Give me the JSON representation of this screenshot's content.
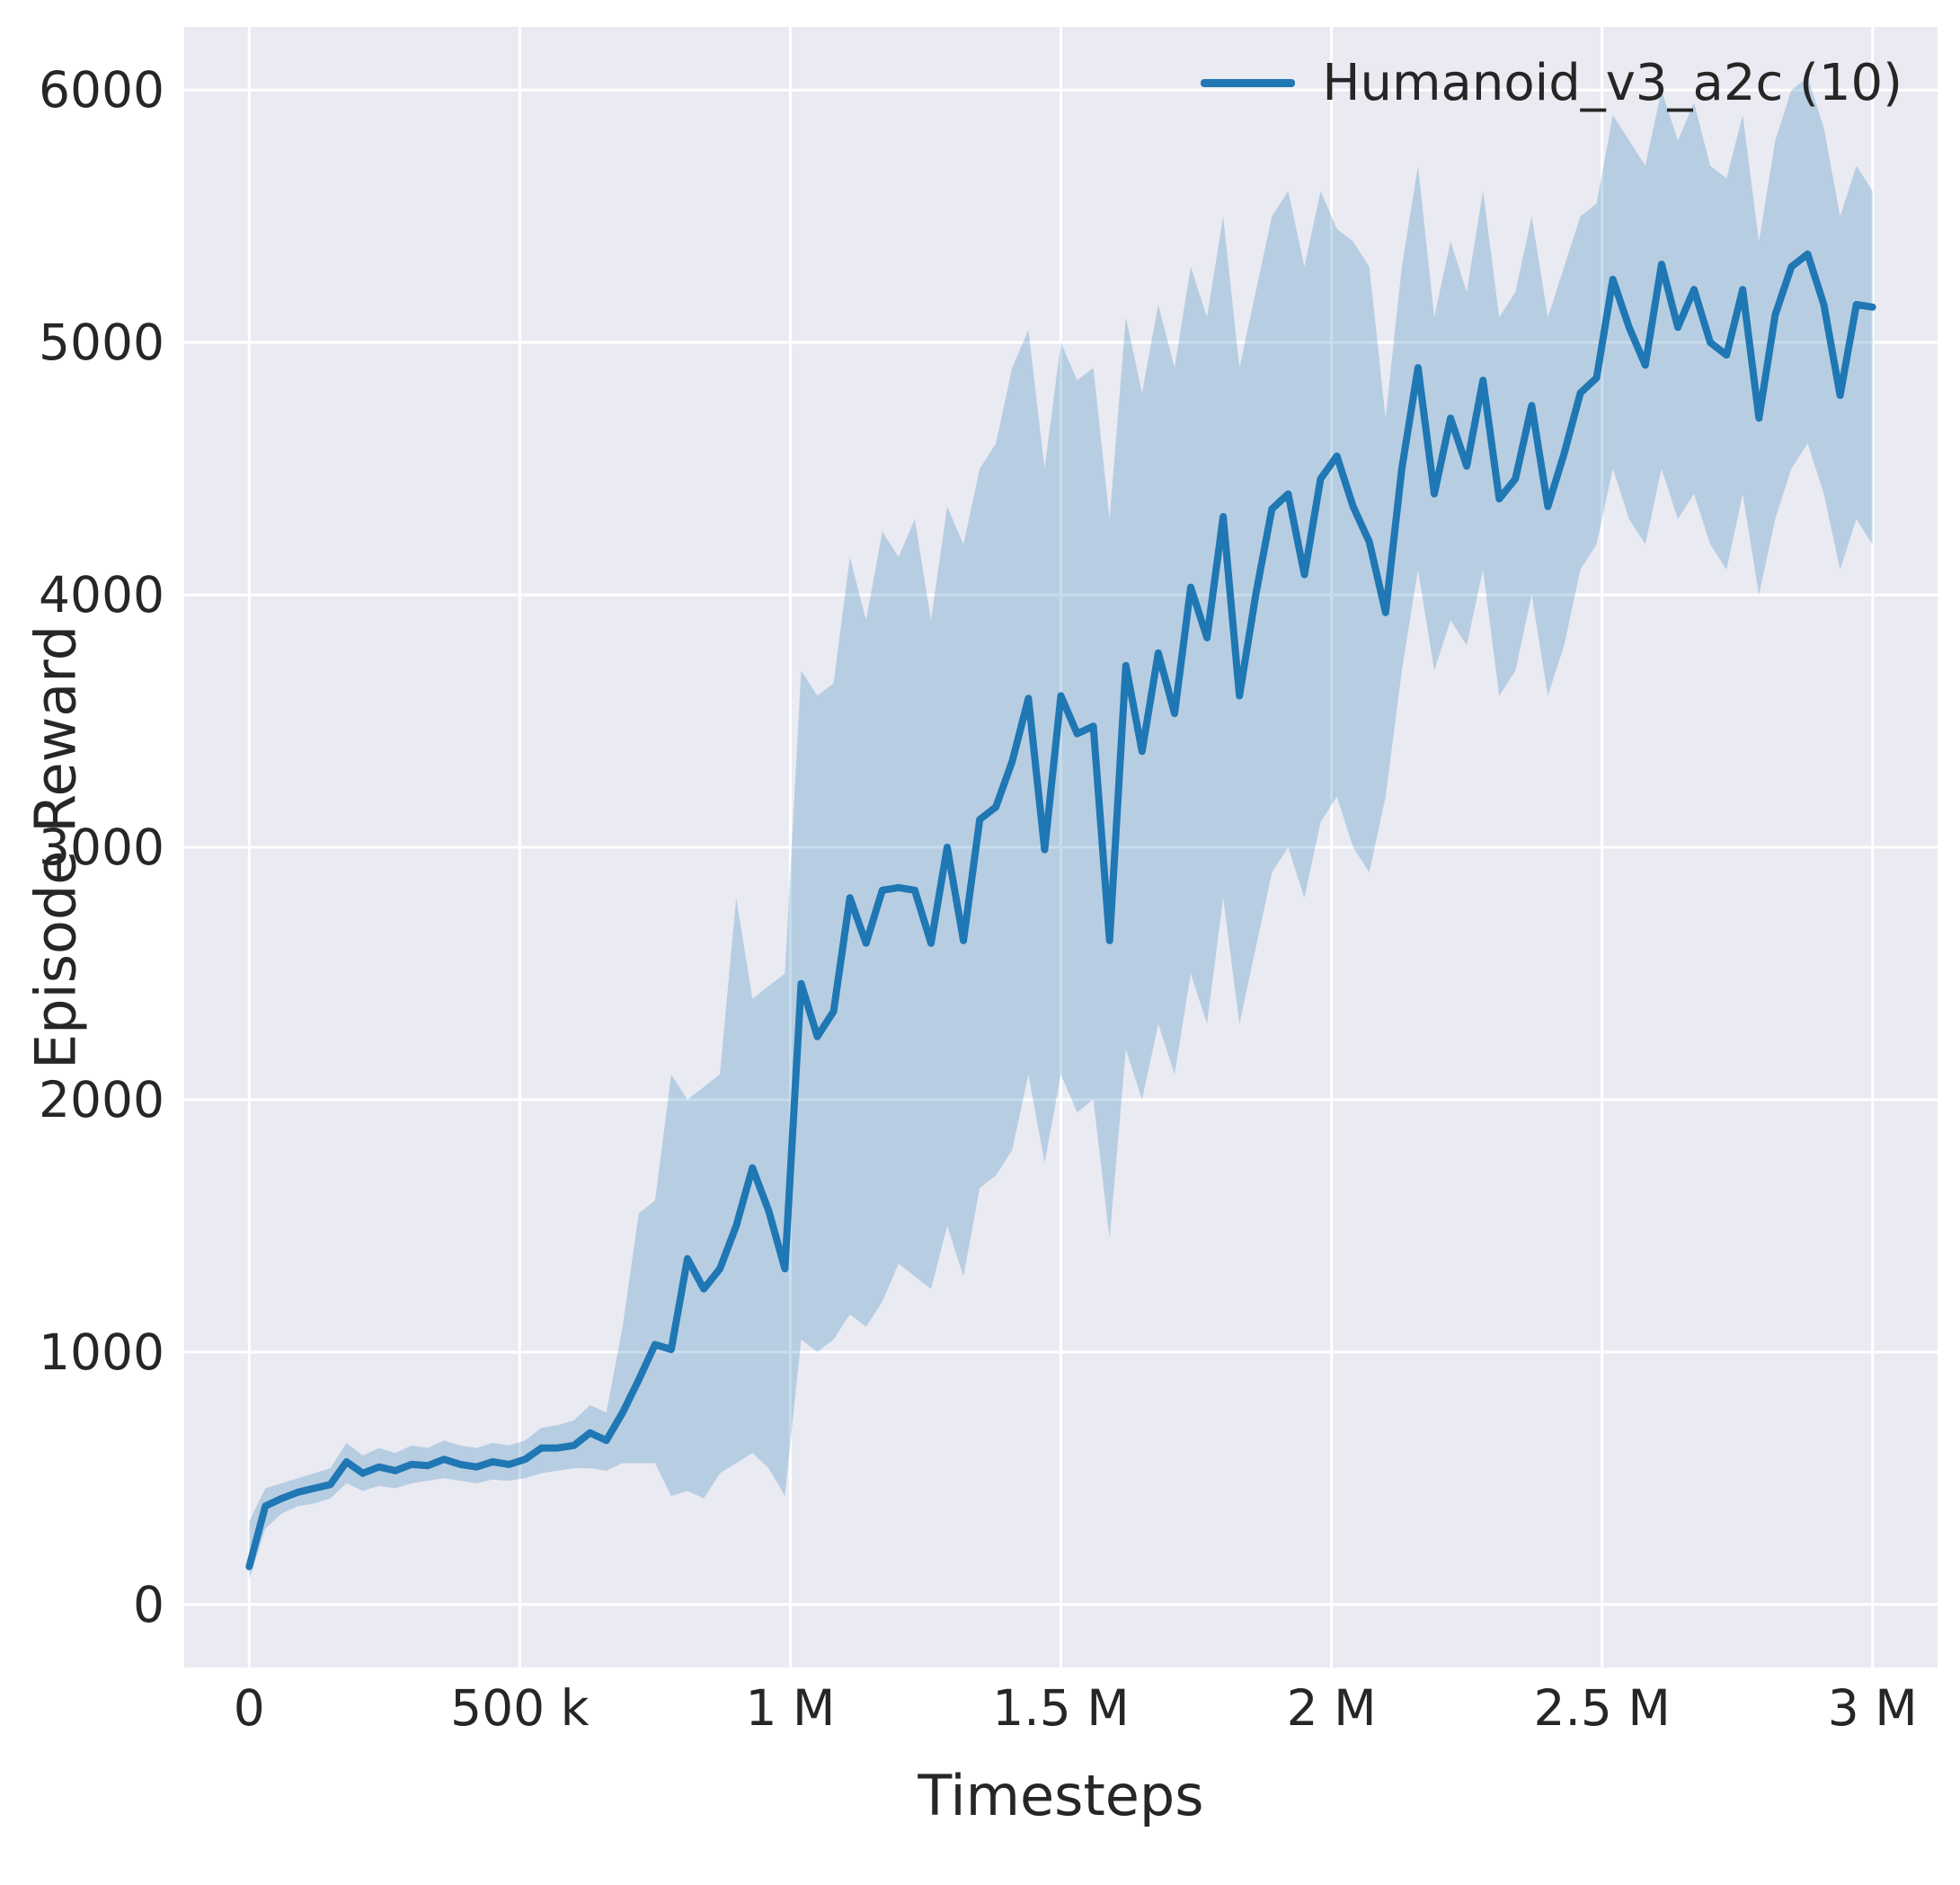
{
  "chart_data": {
    "type": "line",
    "title": "",
    "xlabel": "Timesteps",
    "ylabel": "Episode Reward",
    "legend_label": "Humanoid_v3_a2c (10)",
    "legend_position": "upper right",
    "grid": true,
    "xlim": [
      -120000,
      3120000
    ],
    "ylim": [
      -250,
      6250
    ],
    "xticks": [
      0,
      500000,
      1000000,
      1500000,
      2000000,
      2500000,
      3000000
    ],
    "xtick_labels": [
      "0",
      "500 k",
      "1 M",
      "1.5 M",
      "2 M",
      "2.5 M",
      "3 M"
    ],
    "yticks": [
      0,
      1000,
      2000,
      3000,
      4000,
      5000,
      6000
    ],
    "ytick_labels": [
      "0",
      "1000",
      "2000",
      "3000",
      "4000",
      "5000",
      "6000"
    ],
    "colors": {
      "line": "#1f77b4",
      "band": "rgba(31,119,180,0.25)",
      "panel": "#eaeaf2",
      "grid": "#ffffff",
      "text": "#262626"
    },
    "series": [
      {
        "name": "Humanoid_v3_a2c (10)",
        "x": [
          0,
          30000,
          60000,
          90000,
          120000,
          150000,
          180000,
          210000,
          240000,
          270000,
          300000,
          330000,
          360000,
          390000,
          420000,
          450000,
          480000,
          510000,
          540000,
          570000,
          600000,
          630000,
          660000,
          690000,
          720000,
          750000,
          780000,
          810000,
          840000,
          870000,
          900000,
          930000,
          960000,
          990000,
          1020000,
          1050000,
          1080000,
          1110000,
          1140000,
          1170000,
          1200000,
          1230000,
          1260000,
          1290000,
          1320000,
          1350000,
          1380000,
          1410000,
          1440000,
          1470000,
          1500000,
          1530000,
          1560000,
          1590000,
          1620000,
          1650000,
          1680000,
          1710000,
          1740000,
          1770000,
          1800000,
          1830000,
          1860000,
          1890000,
          1920000,
          1950000,
          1980000,
          2010000,
          2040000,
          2070000,
          2100000,
          2130000,
          2160000,
          2190000,
          2220000,
          2250000,
          2280000,
          2310000,
          2340000,
          2370000,
          2400000,
          2430000,
          2460000,
          2490000,
          2520000,
          2550000,
          2580000,
          2610000,
          2640000,
          2670000,
          2700000,
          2730000,
          2760000,
          2790000,
          2820000,
          2850000,
          2880000,
          2910000,
          2940000,
          2970000,
          3000000
        ],
        "mean": [
          150,
          390,
          420,
          445,
          460,
          475,
          565,
          520,
          545,
          530,
          555,
          550,
          575,
          555,
          545,
          565,
          555,
          575,
          620,
          620,
          630,
          680,
          650,
          760,
          890,
          1030,
          1010,
          1370,
          1250,
          1330,
          1500,
          1730,
          1560,
          1330,
          2460,
          2250,
          2350,
          2800,
          2620,
          2830,
          2840,
          2830,
          2620,
          3000,
          2630,
          3110,
          3160,
          3340,
          3590,
          2990,
          3600,
          3450,
          3480,
          2630,
          3720,
          3380,
          3770,
          3530,
          4030,
          3830,
          4310,
          3600,
          4000,
          4340,
          4400,
          4080,
          4460,
          4550,
          4350,
          4210,
          3930,
          4500,
          4900,
          4400,
          4700,
          4510,
          4850,
          4380,
          4460,
          4750,
          4350,
          4560,
          4800,
          4860,
          5250,
          5060,
          4910,
          5310,
          5060,
          5210,
          5000,
          4950,
          5210,
          4700,
          5110,
          5300,
          5350,
          5150,
          4790,
          5150,
          5140
        ],
        "lower": [
          100,
          300,
          360,
          390,
          400,
          420,
          480,
          450,
          470,
          460,
          480,
          490,
          500,
          490,
          480,
          495,
          490,
          500,
          520,
          530,
          540,
          540,
          530,
          560,
          560,
          560,
          430,
          450,
          420,
          520,
          560,
          600,
          540,
          430,
          1050,
          1000,
          1050,
          1150,
          1100,
          1200,
          1350,
          1300,
          1250,
          1500,
          1300,
          1650,
          1700,
          1800,
          2100,
          1750,
          2100,
          1950,
          2000,
          1450,
          2200,
          2000,
          2300,
          2100,
          2500,
          2300,
          2800,
          2300,
          2600,
          2900,
          3000,
          2800,
          3100,
          3200,
          3000,
          2900,
          3200,
          3700,
          4100,
          3700,
          3900,
          3800,
          4100,
          3600,
          3700,
          4000,
          3600,
          3800,
          4100,
          4200,
          4500,
          4300,
          4200,
          4500,
          4300,
          4400,
          4200,
          4100,
          4400,
          4000,
          4300,
          4500,
          4600,
          4400,
          4100,
          4300,
          4200
        ],
        "upper": [
          330,
          460,
          480,
          500,
          520,
          540,
          640,
          590,
          620,
          600,
          630,
          620,
          650,
          630,
          620,
          640,
          630,
          650,
          700,
          710,
          730,
          790,
          760,
          1100,
          1550,
          1600,
          2100,
          2000,
          2050,
          2100,
          2800,
          2400,
          2450,
          2500,
          3700,
          3600,
          3650,
          4150,
          3900,
          4250,
          4150,
          4300,
          3900,
          4350,
          4200,
          4500,
          4600,
          4900,
          5050,
          4500,
          5000,
          4850,
          4900,
          4300,
          5100,
          4800,
          5150,
          4900,
          5300,
          5100,
          5500,
          4900,
          5200,
          5500,
          5600,
          5300,
          5600,
          5450,
          5400,
          5300,
          4700,
          5300,
          5700,
          5100,
          5400,
          5200,
          5600,
          5100,
          5200,
          5500,
          5100,
          5300,
          5500,
          5550,
          5900,
          5800,
          5700,
          6000,
          5800,
          5950,
          5700,
          5650,
          5900,
          5400,
          5800,
          6000,
          6050,
          5850,
          5500,
          5700,
          5600
        ]
      }
    ]
  }
}
